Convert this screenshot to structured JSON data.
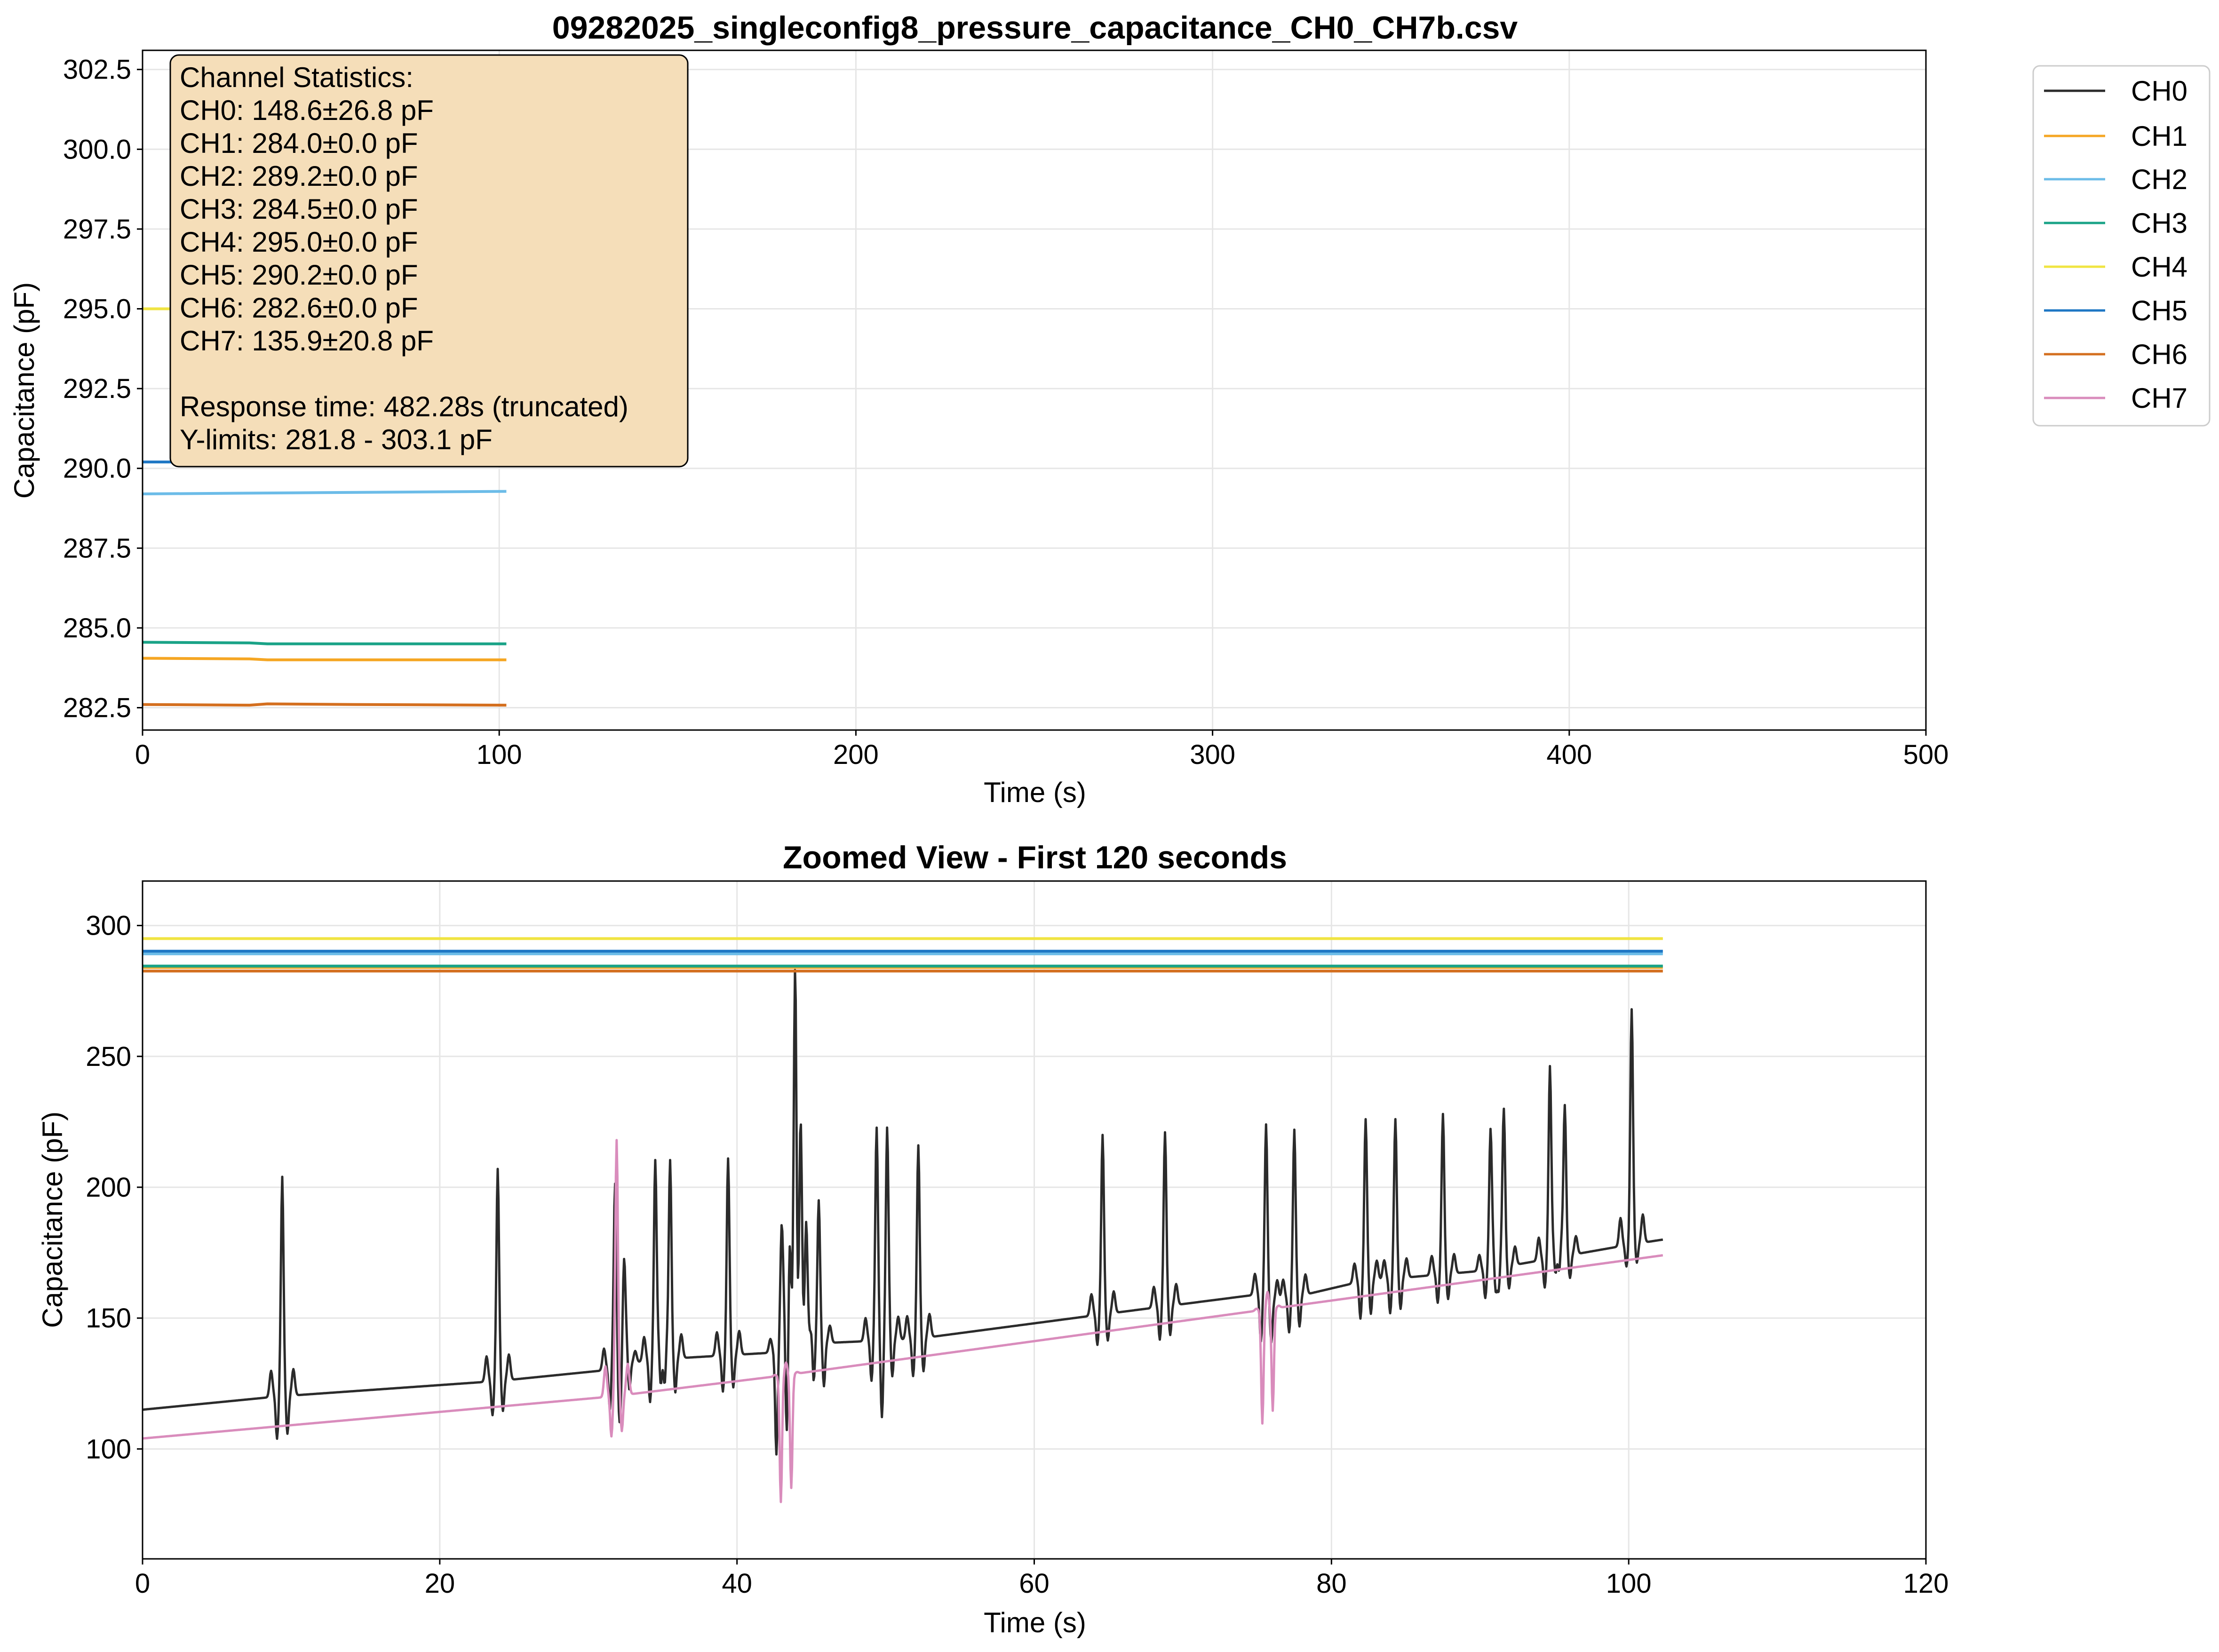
{
  "chart_data": [
    {
      "type": "line",
      "title": "09282025_singleconfig8_pressure_capacitance_CH0_CH7b.csv",
      "xlabel": "Time (s)",
      "ylabel": "Capacitance (pF)",
      "xlim": [
        0,
        500
      ],
      "ylim": [
        281.8,
        303.1
      ],
      "xticks": [
        "0",
        "100",
        "200",
        "300",
        "400",
        "500"
      ],
      "yticks": [
        "282.5",
        "285.0",
        "287.5",
        "290.0",
        "292.5",
        "295.0",
        "297.5",
        "300.0",
        "302.5"
      ],
      "grid": true,
      "legend": {
        "placement": "outside-top-right",
        "entries": [
          "CH0",
          "CH1",
          "CH2",
          "CH3",
          "CH4",
          "CH5",
          "CH6",
          "CH7"
        ]
      },
      "annotation": {
        "lines": [
          "Channel Statistics:",
          "CH0: 148.6±26.8 pF",
          "CH1: 284.0±0.0 pF",
          "CH2: 289.2±0.0 pF",
          "CH3: 284.5±0.0 pF",
          "CH4: 295.0±0.0 pF",
          "CH5: 290.2±0.0 pF",
          "CH6: 282.6±0.0 pF",
          "CH7: 135.9±20.8 pF",
          "",
          "Response time: 482.28s (truncated)",
          "Y-limits: 281.8 - 303.1 pF"
        ],
        "background": "#f5deb9",
        "placement": "top-left"
      },
      "series": [
        {
          "name": "CH1",
          "color": "#f5a623",
          "x": [
            0,
            30,
            35,
            102
          ],
          "y": [
            284.05,
            284.03,
            284.0,
            284.0
          ]
        },
        {
          "name": "CH2",
          "color": "#6cbce8",
          "x": [
            0,
            50,
            102
          ],
          "y": [
            289.2,
            289.24,
            289.28
          ]
        },
        {
          "name": "CH3",
          "color": "#1aa387",
          "x": [
            0,
            30,
            35,
            102
          ],
          "y": [
            284.55,
            284.53,
            284.5,
            284.5
          ]
        },
        {
          "name": "CH4",
          "color": "#f0e442",
          "x": [
            0,
            102
          ],
          "y": [
            295.0,
            295.0
          ]
        },
        {
          "name": "CH5",
          "color": "#1f77c4",
          "x": [
            0,
            102
          ],
          "y": [
            290.2,
            290.2
          ]
        },
        {
          "name": "CH6",
          "color": "#d46f1f",
          "x": [
            0,
            30,
            35,
            60,
            102
          ],
          "y": [
            282.6,
            282.58,
            282.62,
            282.6,
            282.58
          ]
        }
      ]
    },
    {
      "type": "line",
      "title": "Zoomed View - First 120 seconds",
      "xlabel": "Time (s)",
      "ylabel": "Capacitance (pF)",
      "xlim": [
        0,
        120
      ],
      "ylim": [
        58,
        317
      ],
      "xticks": [
        "0",
        "20",
        "40",
        "60",
        "80",
        "100",
        "120"
      ],
      "yticks": [
        "100",
        "150",
        "200",
        "250",
        "300"
      ],
      "grid": true,
      "series": [
        {
          "name": "CH0",
          "color": "#2b2b2b",
          "baseline_x": [
            0,
            9,
            24,
            31,
            34,
            43,
            44,
            52,
            60,
            64,
            75,
            76,
            82,
            90,
            95,
            100,
            102.3
          ],
          "baseline_y": [
            115,
            120,
            126,
            130,
            134,
            137,
            140,
            142,
            148,
            151,
            159,
            156,
            164,
            168,
            173,
            178,
            180
          ],
          "spikes": [
            {
              "x": 9.4,
              "peak": 204,
              "dip": 104
            },
            {
              "x": 23.9,
              "peak": 207,
              "dip": 113
            },
            {
              "x": 31.8,
              "peak": 200,
              "dip": 115
            },
            {
              "x": 32.4,
              "peak": 170,
              "dip": 120
            },
            {
              "x": 34.5,
              "peak": 210,
              "dip": 118
            },
            {
              "x": 35.5,
              "peak": 210,
              "dip": 120
            },
            {
              "x": 39.4,
              "peak": 211,
              "dip": 122
            },
            {
              "x": 43.0,
              "peak": 181,
              "dip": 98
            },
            {
              "x": 43.9,
              "peak": 255,
              "dip": 172
            },
            {
              "x": 44.3,
              "peak": 200,
              "dip": 172
            },
            {
              "x": 45.5,
              "peak": 195,
              "dip": 122
            },
            {
              "x": 49.4,
              "peak": 215,
              "dip": 126
            },
            {
              "x": 50.1,
              "peak": 215,
              "dip": 126
            },
            {
              "x": 52.2,
              "peak": 216,
              "dip": 128
            },
            {
              "x": 64.6,
              "peak": 220,
              "dip": 140
            },
            {
              "x": 68.8,
              "peak": 221,
              "dip": 142
            },
            {
              "x": 75.6,
              "peak": 224,
              "dip": 140
            },
            {
              "x": 77.5,
              "peak": 222,
              "dip": 145
            },
            {
              "x": 82.3,
              "peak": 226,
              "dip": 150
            },
            {
              "x": 84.3,
              "peak": 226,
              "dip": 152
            },
            {
              "x": 87.5,
              "peak": 228,
              "dip": 156
            },
            {
              "x": 90.7,
              "peak": 220,
              "dip": 158
            },
            {
              "x": 91.6,
              "peak": 228,
              "dip": 160
            },
            {
              "x": 94.7,
              "peak": 246,
              "dip": 162
            },
            {
              "x": 95.7,
              "peak": 231,
              "dip": 164
            },
            {
              "x": 100.2,
              "peak": 268,
              "dip": 170
            }
          ]
        },
        {
          "name": "CH1",
          "color": "#f5a623",
          "x": [
            0,
            102.3
          ],
          "y": [
            284.0,
            284.0
          ]
        },
        {
          "name": "CH2",
          "color": "#6cbce8",
          "x": [
            0,
            102.3
          ],
          "y": [
            289.2,
            289.2
          ]
        },
        {
          "name": "CH3",
          "color": "#1aa387",
          "x": [
            0,
            102.3
          ],
          "y": [
            284.5,
            284.5
          ]
        },
        {
          "name": "CH4",
          "color": "#f0e442",
          "x": [
            0,
            102.3
          ],
          "y": [
            295.0,
            295.0
          ]
        },
        {
          "name": "CH5",
          "color": "#1f77c4",
          "x": [
            0,
            102.3
          ],
          "y": [
            290.2,
            290.2
          ]
        },
        {
          "name": "CH6",
          "color": "#d46f1f",
          "x": [
            0,
            102.3
          ],
          "y": [
            282.6,
            282.6
          ]
        },
        {
          "name": "CH7",
          "color": "#d98cbc",
          "baseline_x": [
            0,
            31.5,
            43,
            102.3
          ],
          "baseline_y": [
            104,
            120,
            128,
            174
          ],
          "spikes": [
            {
              "x": 31.9,
              "peak": 218,
              "dip": 105
            },
            {
              "x": 43.3,
              "peak": 133,
              "dip": 80
            },
            {
              "x": 75.7,
              "peak": 160,
              "dip": 110
            }
          ]
        }
      ]
    }
  ]
}
